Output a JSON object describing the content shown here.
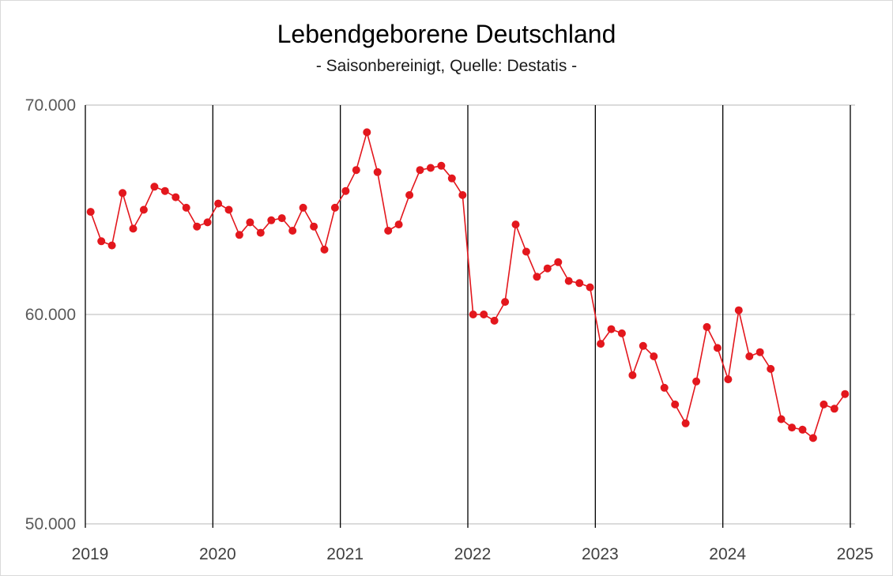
{
  "chart_data": {
    "type": "line",
    "title": "Lebendgeborene Deutschland",
    "subtitle": "- Saisonbereinigt, Quelle: Destatis -",
    "frequency": "monthly",
    "x_start": "2019-01",
    "x_tick_labels": [
      "2019",
      "2020",
      "2021",
      "2022",
      "2023",
      "2024",
      "2025"
    ],
    "y_ticks": [
      {
        "label": "70.000",
        "value": 70000
      },
      {
        "label": "60.000",
        "value": 60000
      },
      {
        "label": "50.000",
        "value": 50000
      }
    ],
    "ylim": [
      50000,
      70000
    ],
    "legend": "none",
    "grid": {
      "horizontal": "on",
      "vertical": "on"
    },
    "marker": "circle",
    "series": [
      {
        "name": "Lebendgeborene Deutschland (saisonbereinigt)",
        "color": "#e3171d",
        "values": [
          64900,
          63500,
          63300,
          65800,
          64100,
          65000,
          66100,
          65900,
          65600,
          65100,
          64200,
          64400,
          65300,
          65000,
          63800,
          64400,
          63900,
          64500,
          64600,
          64000,
          65100,
          64200,
          63100,
          65100,
          65900,
          66900,
          68700,
          66800,
          64000,
          64300,
          65700,
          66900,
          67000,
          67100,
          66500,
          65700,
          60000,
          60000,
          59700,
          60600,
          64300,
          63000,
          61800,
          62200,
          62500,
          61600,
          61500,
          61300,
          58600,
          59300,
          59100,
          57100,
          58500,
          58000,
          56500,
          55700,
          54800,
          56800,
          59400,
          58400,
          56900,
          60200,
          58000,
          58200,
          57400,
          55000,
          54600,
          54500,
          54100,
          55700,
          55500,
          56200
        ]
      }
    ],
    "colors": {
      "horizontal_grid": "#d6d6d6",
      "vertical_grid": "#000000",
      "y_axis_text": "#595959",
      "x_axis_text": "#404040",
      "title_text": "#000000",
      "background": "#ffffff",
      "outer_border": "#d9d9d9"
    }
  }
}
